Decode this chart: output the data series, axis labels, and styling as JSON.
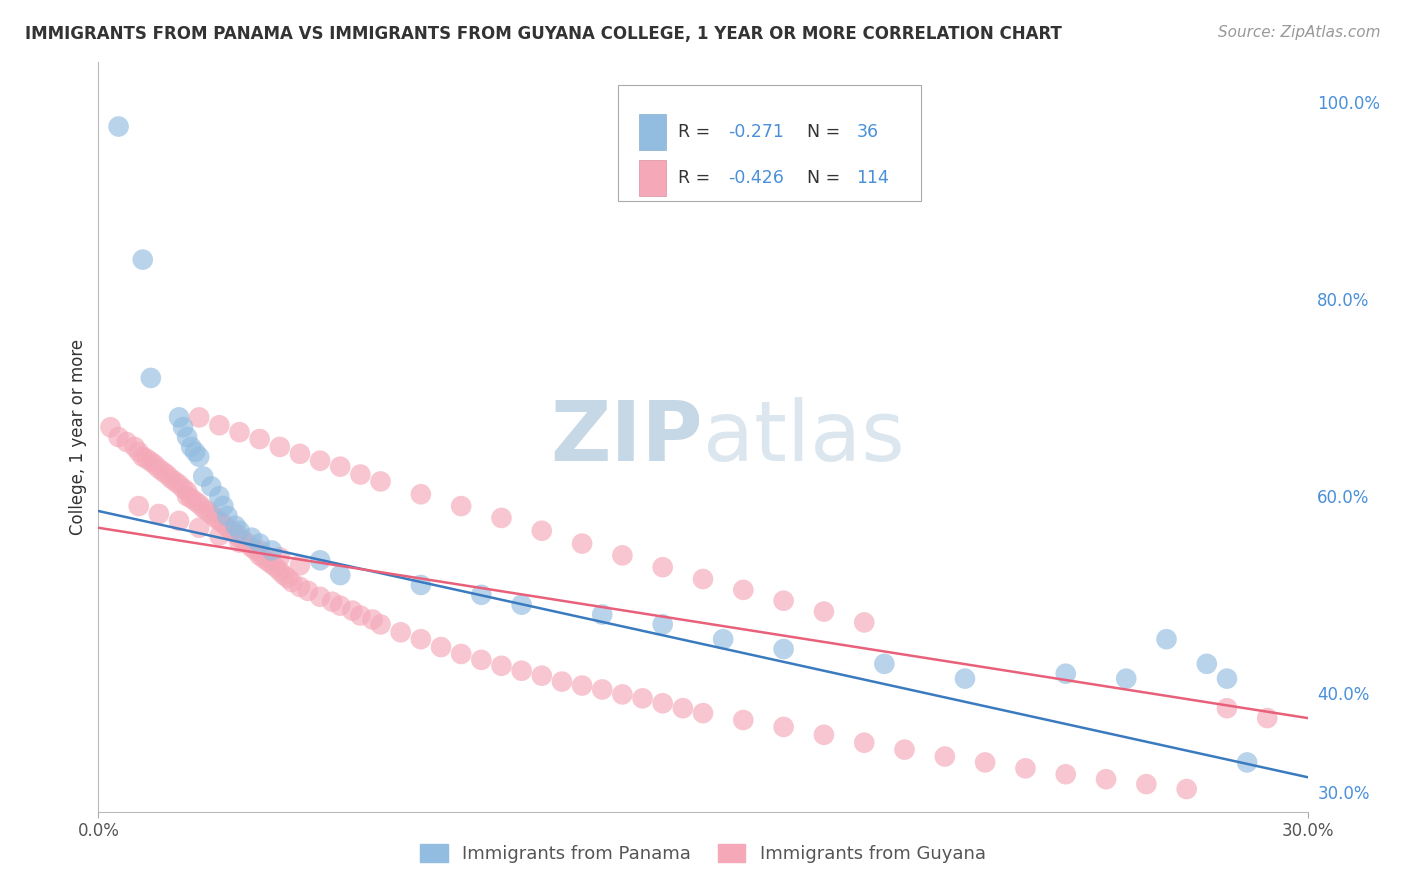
{
  "title": "IMMIGRANTS FROM PANAMA VS IMMIGRANTS FROM GUYANA COLLEGE, 1 YEAR OR MORE CORRELATION CHART",
  "source": "Source: ZipAtlas.com",
  "ylabel": "College, 1 year or more",
  "xlim": [
    0.0,
    0.3
  ],
  "ylim": [
    0.28,
    1.04
  ],
  "yticks_right": [
    0.3,
    0.4,
    0.6,
    0.8,
    1.0
  ],
  "ytick_labels_right": [
    "30.0%",
    "40.0%",
    "60.0%",
    "80.0%",
    "100.0%"
  ],
  "legend_r_blue": "-0.271",
  "legend_n_blue": "36",
  "legend_r_pink": "-0.426",
  "legend_n_pink": "114",
  "blue_color": "#92bce0",
  "pink_color": "#f4a8b8",
  "blue_line_color": "#3a7abf",
  "pink_line_color": "#e8607a",
  "text_color_dark": "#444444",
  "text_color_blue": "#4a90d9",
  "watermark_color": "#ccdded",
  "background_color": "#ffffff",
  "grid_color": "#cccccc",
  "blue_line_y0": 0.585,
  "blue_line_y1": 0.315,
  "pink_line_y0": 0.568,
  "pink_line_y1": 0.375,
  "panama_x": [
    0.005,
    0.011,
    0.013,
    0.02,
    0.021,
    0.022,
    0.023,
    0.024,
    0.025,
    0.026,
    0.028,
    0.03,
    0.031,
    0.032,
    0.034,
    0.035,
    0.038,
    0.04,
    0.043,
    0.055,
    0.06,
    0.08,
    0.095,
    0.105,
    0.125,
    0.14,
    0.155,
    0.17,
    0.195,
    0.215,
    0.24,
    0.255,
    0.265,
    0.275,
    0.28,
    0.285
  ],
  "panama_y": [
    0.975,
    0.84,
    0.72,
    0.68,
    0.67,
    0.66,
    0.65,
    0.645,
    0.64,
    0.62,
    0.61,
    0.6,
    0.59,
    0.58,
    0.57,
    0.565,
    0.558,
    0.552,
    0.545,
    0.535,
    0.52,
    0.51,
    0.5,
    0.49,
    0.48,
    0.47,
    0.455,
    0.445,
    0.43,
    0.415,
    0.42,
    0.415,
    0.455,
    0.43,
    0.415,
    0.33
  ],
  "guyana_x": [
    0.003,
    0.005,
    0.007,
    0.009,
    0.01,
    0.011,
    0.012,
    0.013,
    0.014,
    0.015,
    0.016,
    0.017,
    0.018,
    0.019,
    0.02,
    0.021,
    0.022,
    0.022,
    0.023,
    0.024,
    0.025,
    0.026,
    0.027,
    0.028,
    0.029,
    0.03,
    0.031,
    0.032,
    0.033,
    0.034,
    0.035,
    0.036,
    0.037,
    0.038,
    0.039,
    0.04,
    0.041,
    0.042,
    0.043,
    0.044,
    0.045,
    0.046,
    0.047,
    0.048,
    0.05,
    0.052,
    0.055,
    0.058,
    0.06,
    0.063,
    0.065,
    0.068,
    0.07,
    0.075,
    0.08,
    0.085,
    0.09,
    0.095,
    0.1,
    0.105,
    0.11,
    0.115,
    0.12,
    0.125,
    0.13,
    0.135,
    0.14,
    0.145,
    0.15,
    0.16,
    0.17,
    0.18,
    0.19,
    0.2,
    0.21,
    0.22,
    0.23,
    0.24,
    0.25,
    0.26,
    0.27,
    0.01,
    0.015,
    0.02,
    0.025,
    0.03,
    0.035,
    0.04,
    0.045,
    0.05,
    0.025,
    0.03,
    0.035,
    0.04,
    0.045,
    0.05,
    0.055,
    0.06,
    0.065,
    0.07,
    0.08,
    0.09,
    0.1,
    0.11,
    0.12,
    0.13,
    0.14,
    0.15,
    0.16,
    0.17,
    0.18,
    0.19,
    0.29,
    0.28
  ],
  "guyana_y": [
    0.67,
    0.66,
    0.655,
    0.65,
    0.645,
    0.64,
    0.638,
    0.635,
    0.632,
    0.628,
    0.625,
    0.622,
    0.618,
    0.615,
    0.612,
    0.608,
    0.605,
    0.6,
    0.598,
    0.595,
    0.592,
    0.588,
    0.585,
    0.582,
    0.578,
    0.575,
    0.572,
    0.568,
    0.565,
    0.562,
    0.558,
    0.555,
    0.552,
    0.548,
    0.545,
    0.54,
    0.537,
    0.534,
    0.531,
    0.528,
    0.524,
    0.52,
    0.517,
    0.513,
    0.508,
    0.504,
    0.498,
    0.493,
    0.489,
    0.484,
    0.479,
    0.475,
    0.47,
    0.462,
    0.455,
    0.447,
    0.44,
    0.434,
    0.428,
    0.423,
    0.418,
    0.412,
    0.408,
    0.404,
    0.399,
    0.395,
    0.39,
    0.385,
    0.38,
    0.373,
    0.366,
    0.358,
    0.35,
    0.343,
    0.336,
    0.33,
    0.324,
    0.318,
    0.313,
    0.308,
    0.303,
    0.59,
    0.582,
    0.575,
    0.568,
    0.56,
    0.553,
    0.545,
    0.538,
    0.53,
    0.68,
    0.672,
    0.665,
    0.658,
    0.65,
    0.643,
    0.636,
    0.63,
    0.622,
    0.615,
    0.602,
    0.59,
    0.578,
    0.565,
    0.552,
    0.54,
    0.528,
    0.516,
    0.505,
    0.494,
    0.483,
    0.472,
    0.375,
    0.385
  ]
}
